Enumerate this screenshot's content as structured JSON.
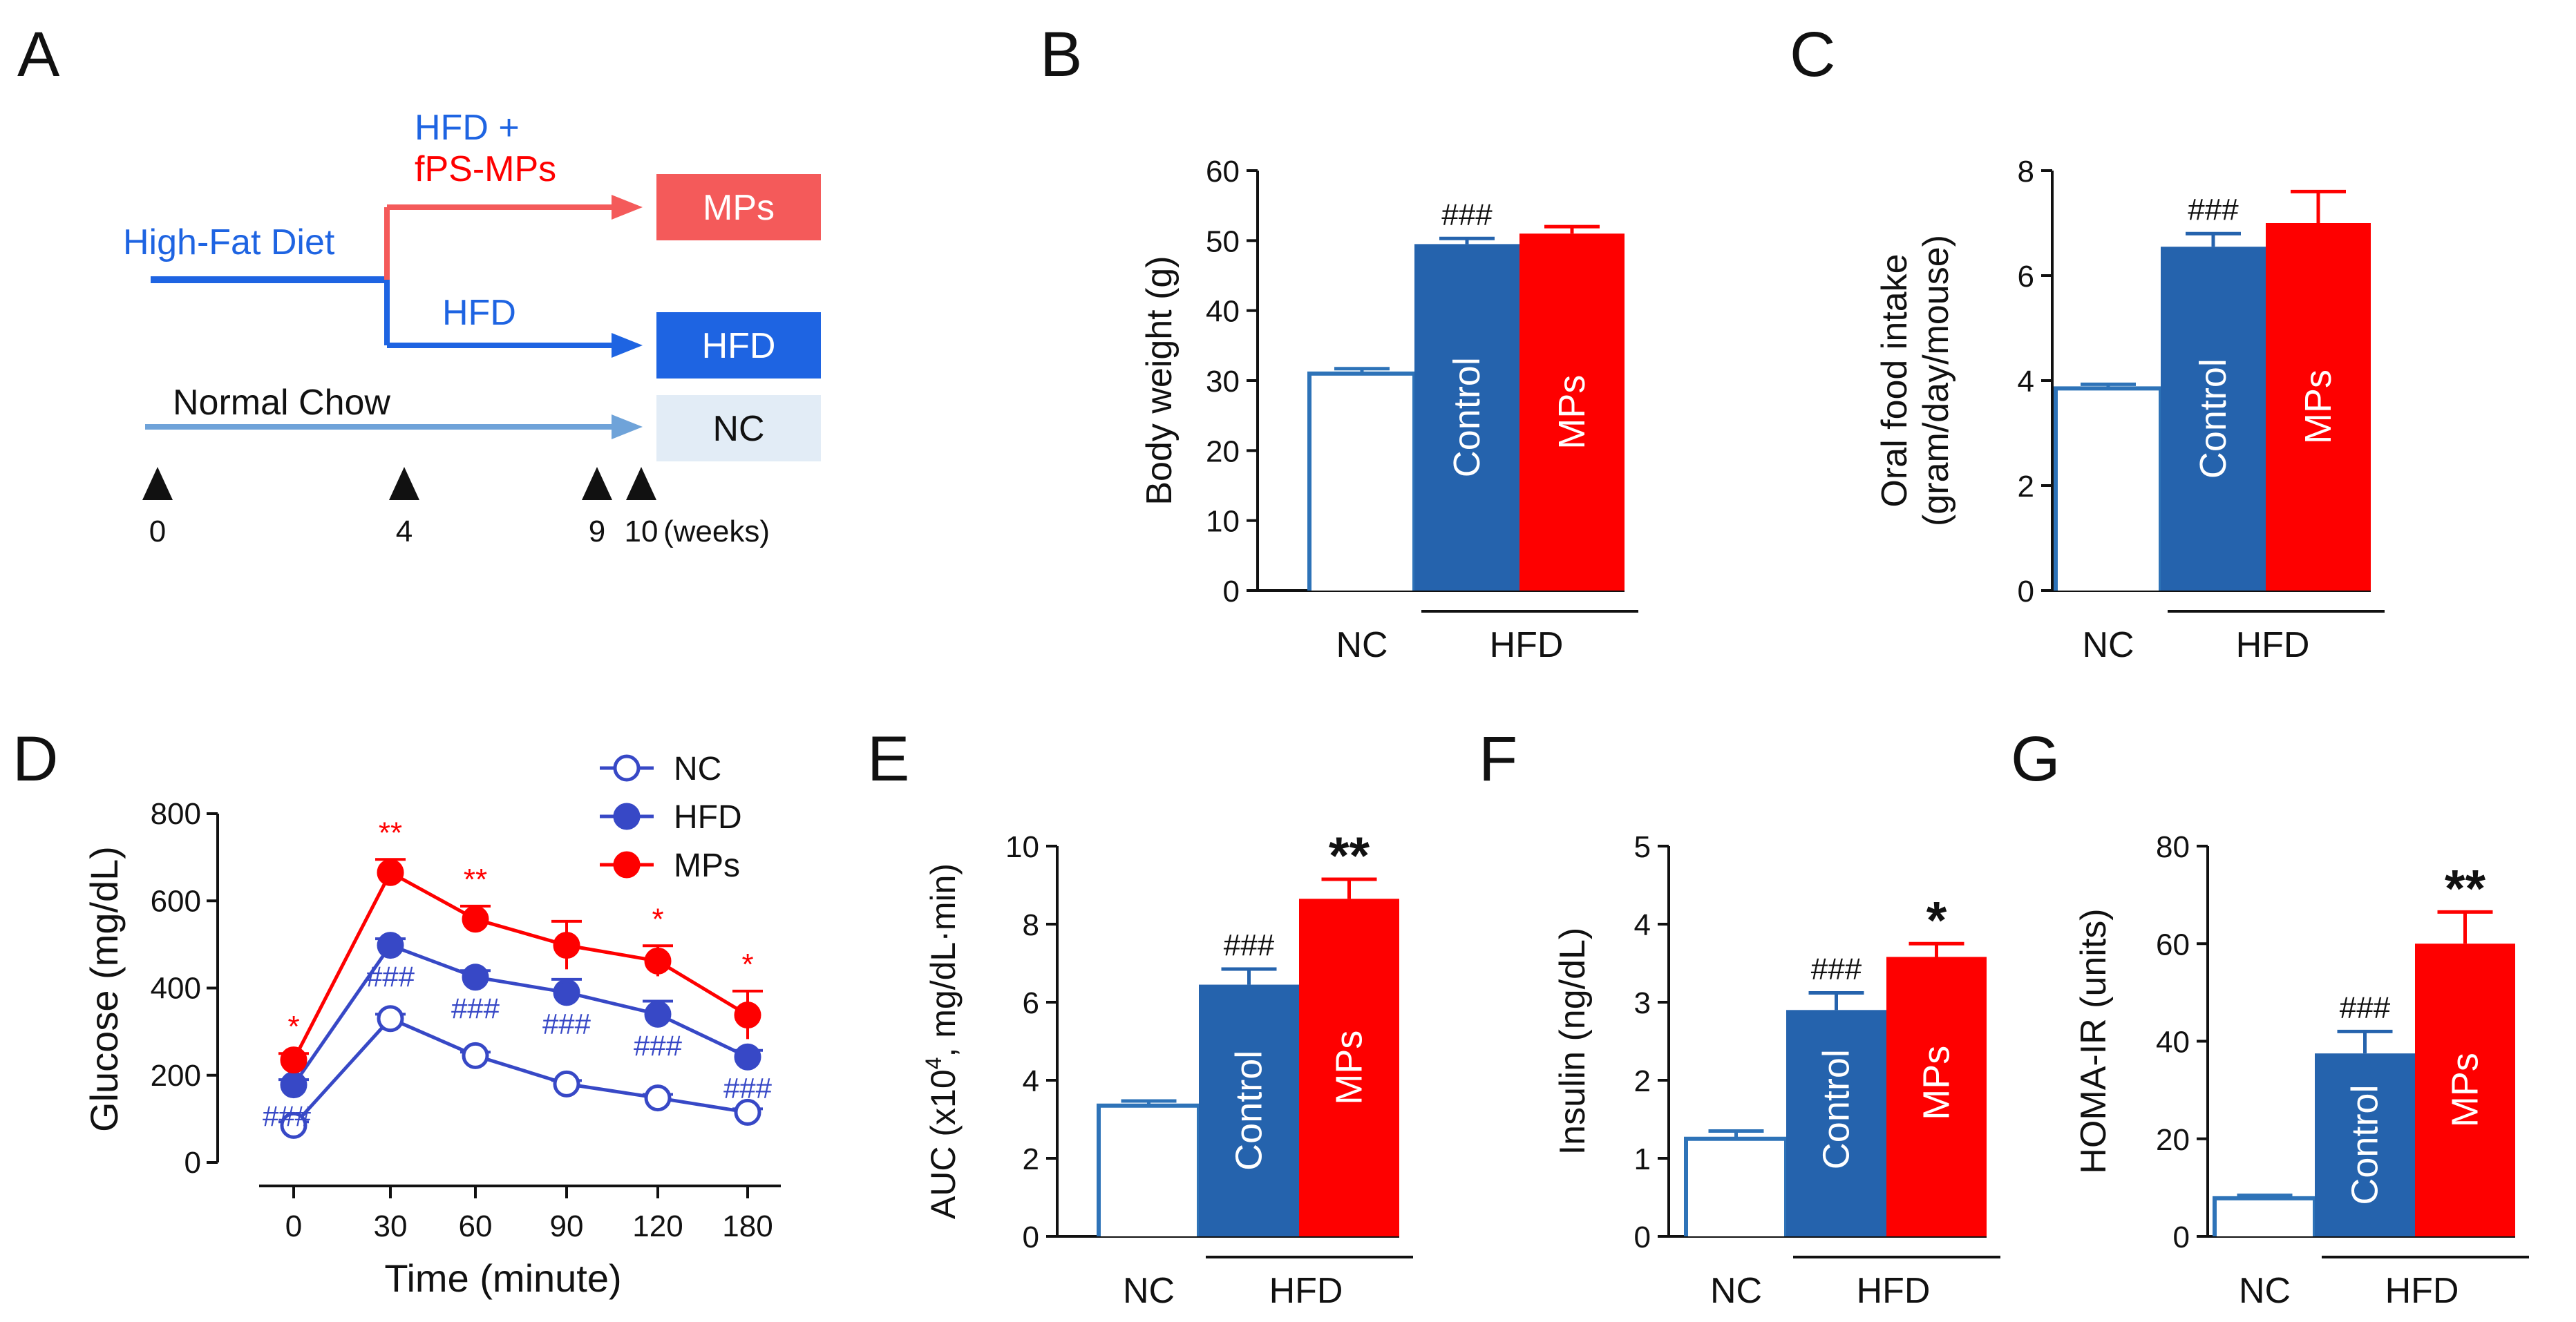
{
  "colors": {
    "nc": "#2e73b8",
    "hfd": "#2563ad",
    "mps": "#fe0000",
    "mps_light": "#f45a5a",
    "nc_light": "#e2ecf6",
    "hfd_arrow": "#1e64e2",
    "nc_arrow": "#6fa3d9",
    "hash_blue": "#3748c6",
    "text": "#111111"
  },
  "panelA": {
    "label": "A",
    "hfd_mps_line1": "HFD +",
    "hfd_mps_line2": "fPS-MPs",
    "high_fat_diet": "High-Fat Diet",
    "hfd_arm": "HFD",
    "normal_chow": "Normal Chow",
    "box_mps": "MPs",
    "box_hfd": "HFD",
    "box_nc": "NC",
    "weeks": [
      "0",
      "4",
      "9",
      "10"
    ],
    "weeks_unit": "(weeks)"
  },
  "chart_data": [
    {
      "panel": "B",
      "type": "bar",
      "title": "",
      "ylabel": "Body weight (g)",
      "ylim": [
        0,
        60
      ],
      "yticks": [
        0,
        10,
        20,
        30,
        40,
        50,
        60
      ],
      "categories": [
        "NC",
        "Control",
        "MPs"
      ],
      "group_label": "HFD",
      "values": [
        31,
        49.5,
        51
      ],
      "errors": [
        0.7,
        0.8,
        1.0
      ],
      "annotations": [
        "",
        "###",
        ""
      ]
    },
    {
      "panel": "C",
      "type": "bar",
      "title": "",
      "ylabel": "Oral food intake",
      "ylabel2": "(gram/day/mouse)",
      "ylim": [
        0,
        8
      ],
      "yticks": [
        0,
        2,
        4,
        6,
        8
      ],
      "categories": [
        "NC",
        "Control",
        "MPs"
      ],
      "group_label": "HFD",
      "values": [
        3.85,
        6.55,
        7.0
      ],
      "errors": [
        0.08,
        0.25,
        0.6
      ],
      "annotations": [
        "",
        "###",
        ""
      ]
    },
    {
      "panel": "D",
      "type": "line",
      "title": "",
      "xlabel": "Time (minute)",
      "ylabel": "Glucose (mg/dL)",
      "x": [
        0,
        30,
        60,
        90,
        120,
        180
      ],
      "ylim": [
        0,
        800
      ],
      "yticks": [
        0,
        200,
        400,
        600,
        800
      ],
      "series": [
        {
          "name": "NC",
          "values": [
            85,
            330,
            245,
            180,
            148,
            115
          ],
          "errors": [
            8,
            10,
            8,
            8,
            8,
            8
          ],
          "annotations": [
            "",
            "",
            "",
            "",
            "",
            ""
          ]
        },
        {
          "name": "HFD",
          "values": [
            178,
            498,
            425,
            390,
            340,
            242
          ],
          "errors": [
            12,
            15,
            15,
            30,
            30,
            15
          ],
          "annotations": [
            "###",
            "###",
            "###",
            "###",
            "###",
            "###"
          ]
        },
        {
          "name": "MPs",
          "values": [
            235,
            665,
            558,
            498,
            462,
            338
          ],
          "errors": [
            15,
            30,
            30,
            55,
            35,
            55
          ],
          "annotations": [
            "*",
            "**",
            "**",
            "",
            "*",
            "*"
          ]
        }
      ]
    },
    {
      "panel": "E",
      "type": "bar",
      "title": "",
      "ylabel": "AUC (x10",
      "ylabel_sup": "4",
      "ylabel_tail": ", mg/dL·min)",
      "ylim": [
        0,
        10
      ],
      "yticks": [
        0,
        2,
        4,
        6,
        8,
        10
      ],
      "categories": [
        "NC",
        "Control",
        "MPs"
      ],
      "group_label": "HFD",
      "values": [
        3.35,
        6.45,
        8.65
      ],
      "errors": [
        0.12,
        0.4,
        0.5
      ],
      "annotations": [
        "",
        "###",
        "**"
      ]
    },
    {
      "panel": "F",
      "type": "bar",
      "title": "",
      "ylabel": "Insulin (ng/dL)",
      "ylim": [
        0,
        5
      ],
      "yticks": [
        0,
        1,
        2,
        3,
        4,
        5
      ],
      "categories": [
        "NC",
        "Control",
        "MPs"
      ],
      "group_label": "HFD",
      "values": [
        1.25,
        2.9,
        3.58
      ],
      "errors": [
        0.1,
        0.22,
        0.17
      ],
      "annotations": [
        "",
        "###",
        "*"
      ]
    },
    {
      "panel": "G",
      "type": "bar",
      "title": "",
      "ylabel": "HOMA-IR (units)",
      "ylim": [
        0,
        80
      ],
      "yticks": [
        0,
        20,
        40,
        60,
        80
      ],
      "categories": [
        "NC",
        "Control",
        "MPs"
      ],
      "group_label": "HFD",
      "values": [
        7.8,
        37.5,
        60
      ],
      "errors": [
        0.6,
        4.5,
        6.5
      ],
      "annotations": [
        "",
        "###",
        "**"
      ]
    }
  ]
}
